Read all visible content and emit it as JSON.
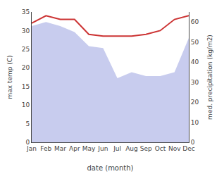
{
  "chart_data": {
    "type": "line",
    "categories": [
      "Jan",
      "Feb",
      "Mar",
      "Apr",
      "May",
      "Jun",
      "Jul",
      "Aug",
      "Sep",
      "Oct",
      "Nov",
      "Dec"
    ],
    "xlabel": "date (month)",
    "ylabel": "max temp (C)",
    "y2label": "med. precipitation (kg/m2)",
    "series": [
      {
        "type": "area",
        "axis": "y2",
        "color": "#c8ccee",
        "values": [
          58,
          60,
          58,
          55,
          48,
          47,
          32,
          35,
          33,
          33,
          35,
          52
        ]
      },
      {
        "type": "line",
        "color": "#cc3333",
        "values": [
          32,
          34,
          33,
          33,
          29,
          28.5,
          28.5,
          28.5,
          29,
          30,
          33,
          34
        ]
      }
    ],
    "ylim": [
      0,
      35
    ],
    "yticks": [
      0,
      5,
      10,
      15,
      20,
      25,
      30,
      35
    ],
    "y2lim": [
      0,
      65
    ],
    "y2ticks": [
      0,
      10,
      20,
      30,
      40,
      50,
      60
    ],
    "grid": false
  }
}
